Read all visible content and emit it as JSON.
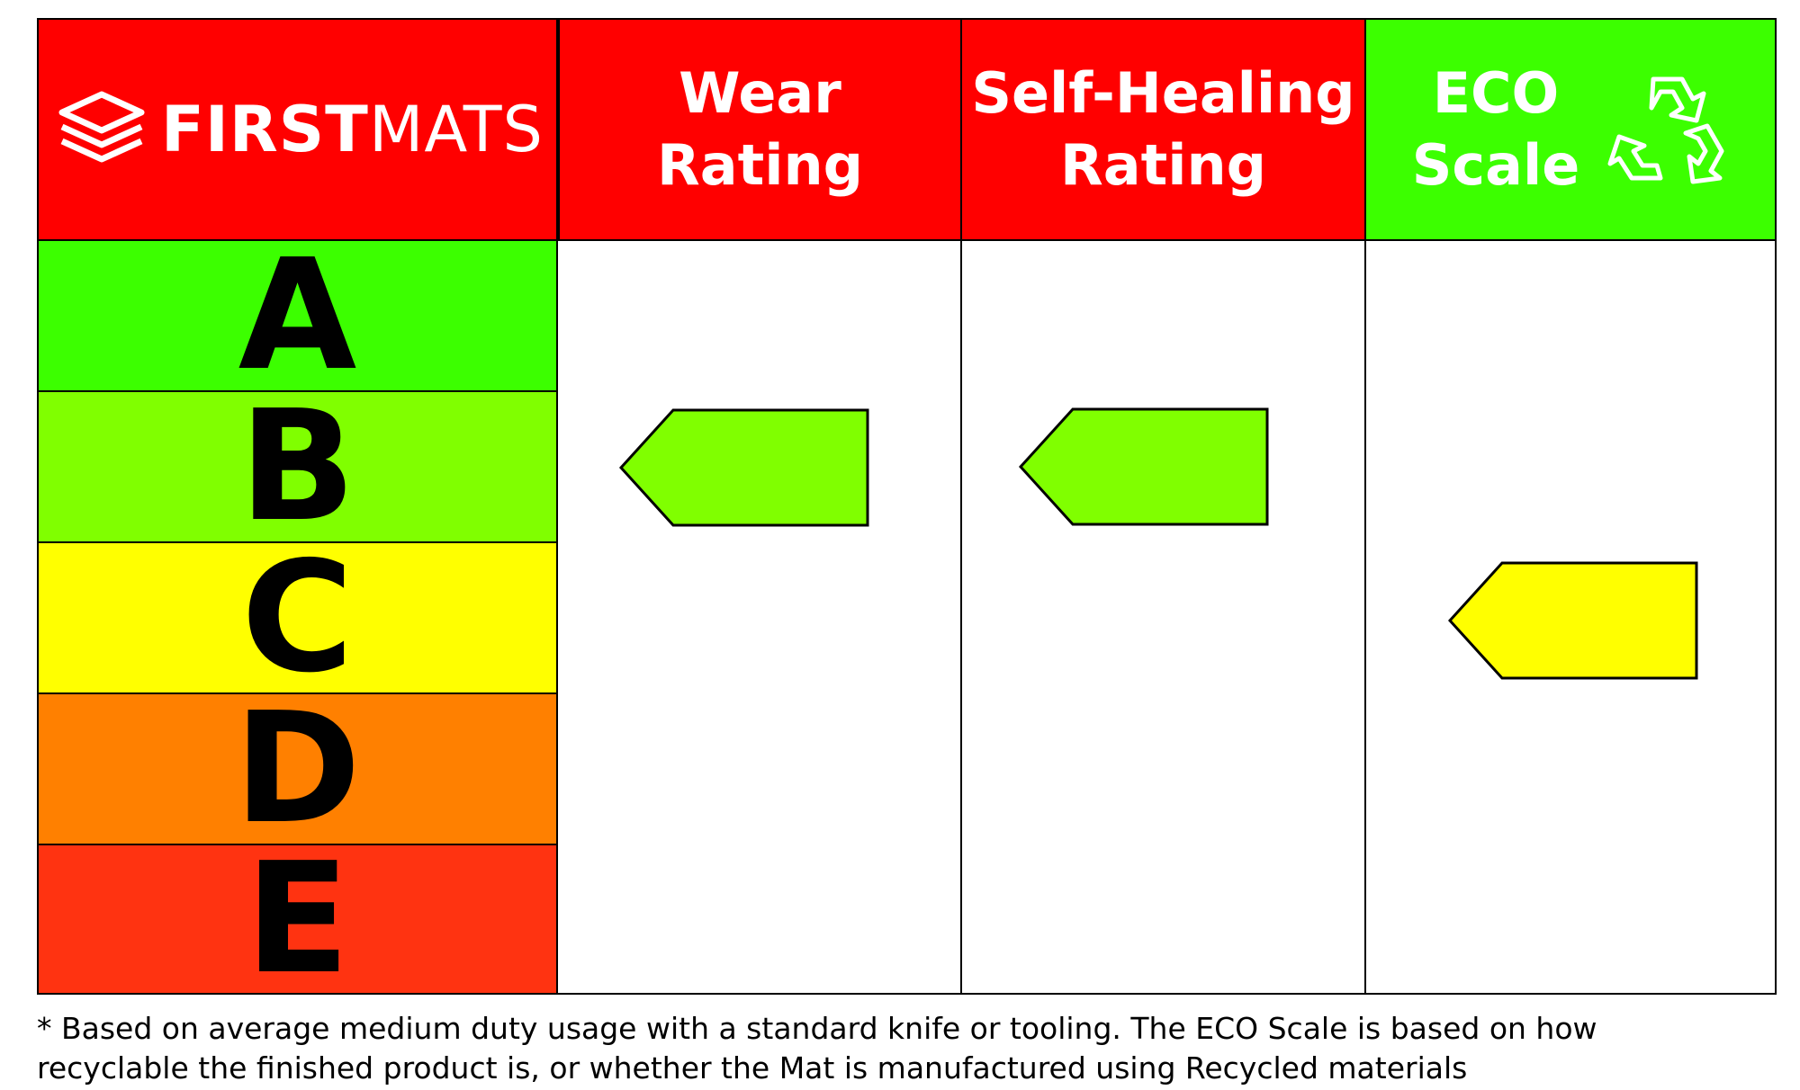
{
  "brand": {
    "name_bold": "FIRST",
    "name_light": "MATS"
  },
  "columns": [
    {
      "id": "wear",
      "line1": "Wear",
      "line2": "Rating",
      "header_color": "#ff0000",
      "rating": "B",
      "marker_color": "#80ff00"
    },
    {
      "id": "self-healing",
      "line1": "Self-Healing",
      "line2": "Rating",
      "header_color": "#ff0000",
      "rating": "B",
      "marker_color": "#80ff00"
    },
    {
      "id": "eco",
      "line1": "ECO",
      "line2": "Scale",
      "header_color": "#3cff00",
      "rating": "C",
      "marker_color": "#ffff00",
      "icon": "recycle-icon"
    }
  ],
  "grades": [
    {
      "letter": "A",
      "color": "#3cff00"
    },
    {
      "letter": "B",
      "color": "#80ff00"
    },
    {
      "letter": "C",
      "color": "#ffff00"
    },
    {
      "letter": "D",
      "color": "#ff8000"
    },
    {
      "letter": "E",
      "color": "#ff3311"
    }
  ],
  "footnote": "* Based on average medium duty usage with a standard knife or tooling. The ECO Scale is based on how recyclable the finished product is, or whether the Mat is manufactured using Recycled materials"
}
